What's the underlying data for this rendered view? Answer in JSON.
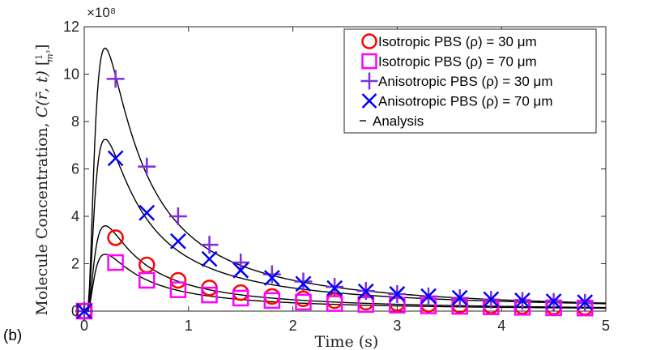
{
  "panel_label": "(b)",
  "chart_data": {
    "type": "scatter",
    "title": "",
    "xlabel": "Time (s)",
    "ylabel": "Molecule Concentration, C(r̄, t) [1/m³]",
    "ylabel_main": "Molecule Concentration, ",
    "ylabel_math": "C(r̄, t)",
    "ylabel_unit_num": "1",
    "ylabel_unit_den": "m³",
    "y_exponent_label": "×10⁸",
    "y_scale_factor": 100000000,
    "xlim": [
      0,
      5
    ],
    "ylim": [
      0,
      12
    ],
    "xticks": [
      0,
      1,
      2,
      3,
      4,
      5
    ],
    "yticks": [
      0,
      2,
      4,
      6,
      8,
      10,
      12
    ],
    "grid": false,
    "legend_position": "top-right",
    "x": [
      0,
      0.3,
      0.6,
      0.9,
      1.2,
      1.5,
      1.8,
      2.1,
      2.4,
      2.7,
      3.0,
      3.3,
      3.6,
      3.9,
      4.2,
      4.5,
      4.8
    ],
    "series": [
      {
        "name": "Isotropic PBS (ρ) = 30 μm",
        "marker": "circle",
        "color": "#ff0000",
        "values": [
          0,
          3.1,
          1.95,
          1.3,
          0.98,
          0.78,
          0.62,
          0.52,
          0.44,
          0.38,
          0.33,
          0.29,
          0.25,
          0.22,
          0.2,
          0.18,
          0.16
        ]
      },
      {
        "name": "Isotropic PBS (ρ) = 70 μm",
        "marker": "square",
        "color": "#ff00ff",
        "values": [
          0,
          2.05,
          1.3,
          0.9,
          0.68,
          0.55,
          0.45,
          0.38,
          0.32,
          0.28,
          0.25,
          0.22,
          0.2,
          0.18,
          0.16,
          0.14,
          0.13
        ]
      },
      {
        "name": "Anisotropic PBS (ρ) = 30 μm",
        "marker": "plus",
        "color": "#7e2fdc",
        "values": [
          0,
          9.8,
          6.1,
          4.0,
          2.8,
          2.05,
          1.55,
          1.25,
          1.02,
          0.85,
          0.72,
          0.62,
          0.55,
          0.48,
          0.43,
          0.39,
          0.35
        ]
      },
      {
        "name": "Anisotropic PBS (ρ) = 70 μm",
        "marker": "x",
        "color": "#0000ff",
        "values": [
          0,
          6.45,
          4.15,
          2.95,
          2.2,
          1.72,
          1.4,
          1.15,
          0.97,
          0.83,
          0.72,
          0.63,
          0.56,
          0.5,
          0.45,
          0.41,
          0.37
        ]
      }
    ],
    "analysis": {
      "name": "Analysis",
      "color": "#000000",
      "curves": [
        {
          "peak": 11.1,
          "tail": 0.36
        },
        {
          "peak": 7.25,
          "tail": 0.33
        },
        {
          "peak": 3.6,
          "tail": 0.16
        },
        {
          "peak": 2.4,
          "tail": 0.13
        }
      ]
    }
  }
}
